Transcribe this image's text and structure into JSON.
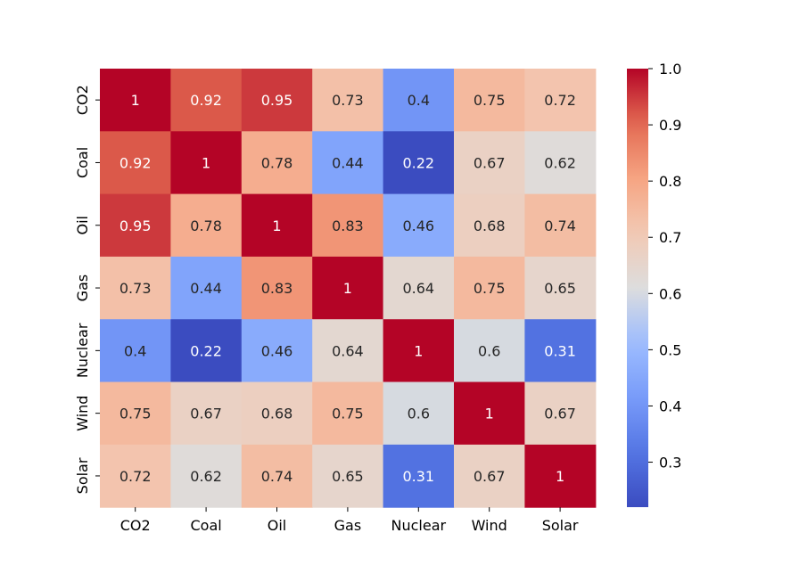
{
  "chart_data": {
    "type": "heatmap",
    "title": "",
    "xlabel": "",
    "ylabel": "",
    "x_categories": [
      "CO2",
      "Coal",
      "Oil",
      "Gas",
      "Nuclear",
      "Wind",
      "Solar"
    ],
    "y_categories": [
      "CO2",
      "Coal",
      "Oil",
      "Gas",
      "Nuclear",
      "Wind",
      "Solar"
    ],
    "values": [
      [
        1,
        0.92,
        0.95,
        0.73,
        0.4,
        0.75,
        0.72
      ],
      [
        0.92,
        1,
        0.78,
        0.44,
        0.22,
        0.67,
        0.62
      ],
      [
        0.95,
        0.78,
        1,
        0.83,
        0.46,
        0.68,
        0.74
      ],
      [
        0.73,
        0.44,
        0.83,
        1,
        0.64,
        0.75,
        0.65
      ],
      [
        0.4,
        0.22,
        0.46,
        0.64,
        1,
        0.6,
        0.31
      ],
      [
        0.75,
        0.67,
        0.68,
        0.75,
        0.6,
        1,
        0.67
      ],
      [
        0.72,
        0.62,
        0.74,
        0.65,
        0.31,
        0.67,
        1
      ]
    ],
    "value_labels": [
      [
        "1",
        "0.92",
        "0.95",
        "0.73",
        "0.4",
        "0.75",
        "0.72"
      ],
      [
        "0.92",
        "1",
        "0.78",
        "0.44",
        "0.22",
        "0.67",
        "0.62"
      ],
      [
        "0.95",
        "0.78",
        "1",
        "0.83",
        "0.46",
        "0.68",
        "0.74"
      ],
      [
        "0.73",
        "0.44",
        "0.83",
        "1",
        "0.64",
        "0.75",
        "0.65"
      ],
      [
        "0.4",
        "0.22",
        "0.46",
        "0.64",
        "1",
        "0.6",
        "0.31"
      ],
      [
        "0.75",
        "0.67",
        "0.68",
        "0.75",
        "0.6",
        "1",
        "0.67"
      ],
      [
        "0.72",
        "0.62",
        "0.74",
        "0.65",
        "0.31",
        "0.67",
        "1"
      ]
    ],
    "colormap": "coolwarm",
    "color_range": [
      0.22,
      1.0
    ],
    "colorbar": {
      "ticks": [
        0.3,
        0.4,
        0.5,
        0.6,
        0.7,
        0.8,
        0.9,
        1.0
      ],
      "tick_labels": [
        "0.3",
        "0.4",
        "0.5",
        "0.6",
        "0.7",
        "0.8",
        "0.9",
        "1.0"
      ],
      "placement": "right"
    },
    "grid": false
  }
}
